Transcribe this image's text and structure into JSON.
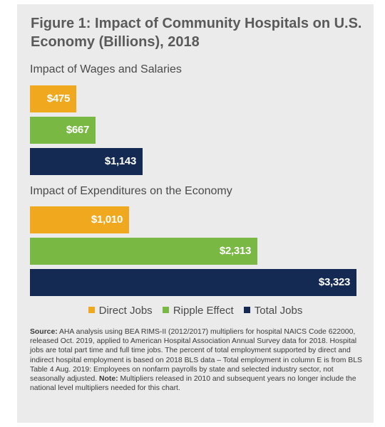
{
  "chart_data": {
    "type": "bar",
    "orientation": "horizontal",
    "title": "Figure 1: Impact of Community Hospitals on U.S. Economy (Billions), 2018",
    "unit_prefix": "$",
    "groups": [
      {
        "label": "Impact of Wages and Salaries",
        "values": [
          475,
          667,
          1143
        ],
        "value_labels": [
          "$475",
          "$667",
          "$1,143"
        ]
      },
      {
        "label": "Impact of Expenditures on the Economy",
        "values": [
          1010,
          2313,
          3323
        ],
        "value_labels": [
          "$1,010",
          "$2,313",
          "$3,323"
        ]
      }
    ],
    "series": [
      {
        "name": "Direct Jobs",
        "color": "#f0a81e"
      },
      {
        "name": "Ripple Effect",
        "color": "#78b843"
      },
      {
        "name": "Total Jobs",
        "color": "#142a52"
      }
    ],
    "xlim": [
      0,
      3323
    ],
    "legend_position": "bottom",
    "grid": false
  },
  "note": {
    "source_label": "Source:",
    "source_text": " AHA analysis using BEA RIMS-II (2012/2017) multipliers for hospital NAICS Code 622000, released Oct. 2019, applied to American Hospital Association Annual Survey data for 2018. Hospital jobs are total part time and full time jobs. The percent of total employment supported by direct and indirect hospital employment is based on 2018 BLS data – Total employment in column E is from BLS Table 4 Aug. 2019: Employees on nonfarm payrolls by state and selected industry sector, not seasonally adjusted. ",
    "note_label": "Note:",
    "note_text": " Multipliers released in 2010 and subsequent years no longer include the national level multipliers needed for this chart."
  },
  "colors": {
    "panel_background": "#ebebeb",
    "title_text": "#5a5a5a"
  }
}
